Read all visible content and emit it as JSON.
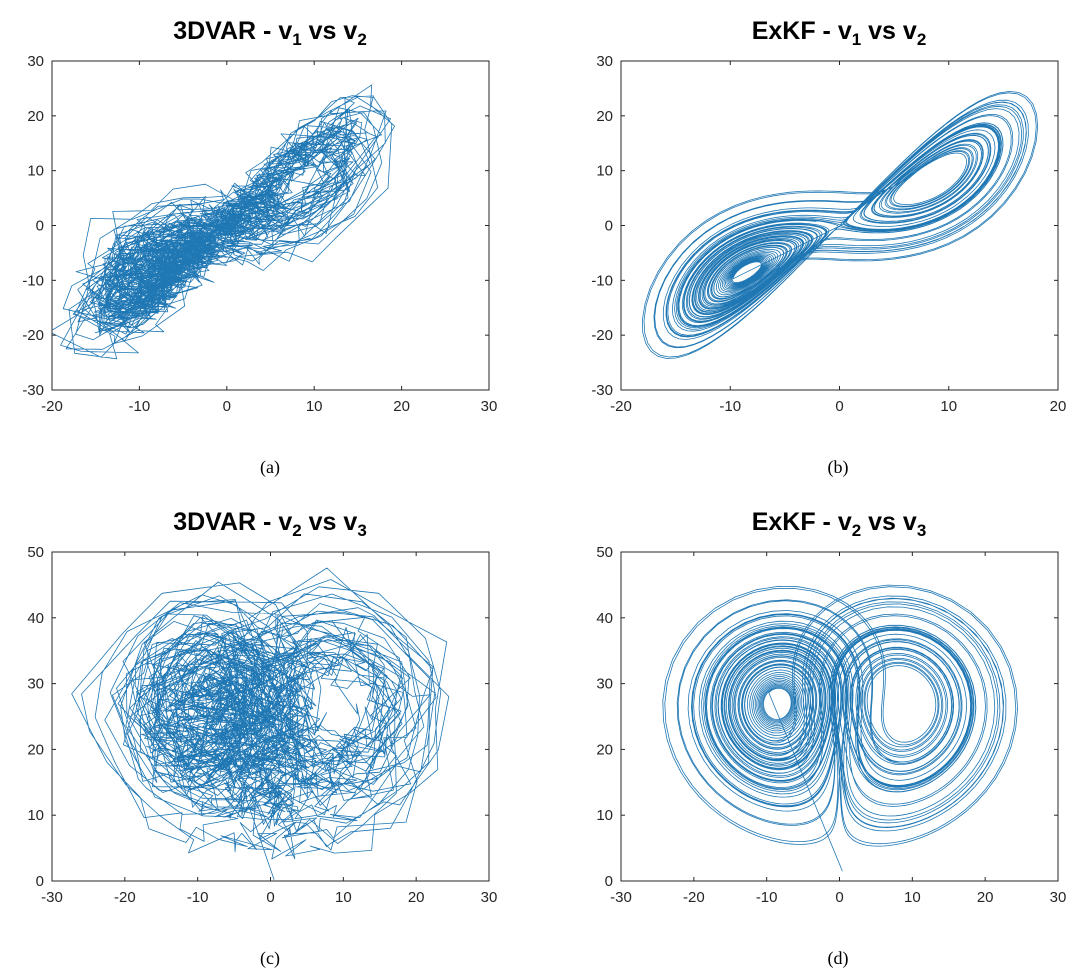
{
  "chart_data": [
    {
      "type": "line",
      "panel": "(a)",
      "title": {
        "main": "3DVAR - v",
        "s1": "1",
        "mid": " vs v",
        "s2": "2"
      },
      "xlim": [
        -20,
        30
      ],
      "ylim": [
        -30,
        30
      ],
      "xticks": [
        -20,
        -10,
        0,
        10,
        20,
        30
      ],
      "yticks": [
        -30,
        -20,
        -10,
        0,
        10,
        20,
        30
      ],
      "series": [
        {
          "x_var": "v1",
          "y_var": "v2",
          "style": "noisy",
          "color": "#0072BD",
          "x_start": 0.1,
          "y_start": 0.4,
          "x_end": 17.2,
          "y_end": 27.2
        }
      ]
    },
    {
      "type": "line",
      "panel": "(b)",
      "title": {
        "main": "ExKF - v",
        "s1": "1",
        "mid": " vs v",
        "s2": "2"
      },
      "xlim": [
        -20,
        20
      ],
      "ylim": [
        -30,
        30
      ],
      "xticks": [
        -20,
        -10,
        0,
        10,
        20
      ],
      "yticks": [
        -30,
        -20,
        -10,
        0,
        10,
        20,
        30
      ],
      "series": [
        {
          "x_var": "v1",
          "y_var": "v2",
          "style": "smooth",
          "color": "#0072BD"
        }
      ]
    },
    {
      "type": "line",
      "panel": "(c)",
      "title": {
        "main": "3DVAR - v",
        "s1": "2",
        "mid": " vs v",
        "s2": "3"
      },
      "xlim": [
        -30,
        30
      ],
      "ylim": [
        0,
        50
      ],
      "xticks": [
        -30,
        -20,
        -10,
        0,
        10,
        20,
        30
      ],
      "yticks": [
        0,
        10,
        20,
        30,
        40,
        50
      ],
      "series": [
        {
          "x_var": "v2",
          "y_var": "v3",
          "style": "noisy",
          "color": "#0072BD",
          "x_start": 0.5,
          "y_start": 0.2,
          "x_end": 27,
          "y_end": 44
        }
      ]
    },
    {
      "type": "line",
      "panel": "(d)",
      "title": {
        "main": "ExKF - v",
        "s1": "2",
        "mid": " vs v",
        "s2": "3"
      },
      "xlim": [
        -30,
        30
      ],
      "ylim": [
        0,
        50
      ],
      "xticks": [
        -30,
        -20,
        -10,
        0,
        10,
        20,
        30
      ],
      "yticks": [
        0,
        10,
        20,
        30,
        40,
        50
      ],
      "series": [
        {
          "x_var": "v2",
          "y_var": "v3",
          "style": "smooth",
          "color": "#0072BD"
        }
      ]
    }
  ]
}
